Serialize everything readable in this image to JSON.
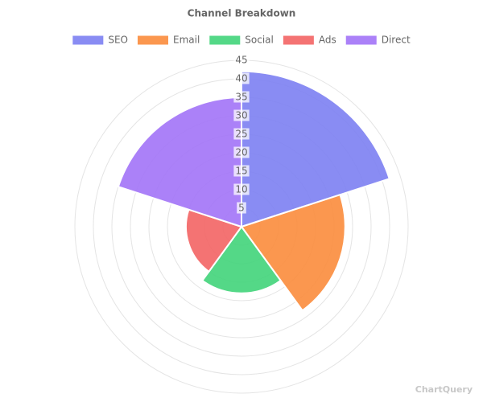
{
  "chart_data": {
    "type": "polarArea",
    "title": "Channel Breakdown",
    "categories": [
      "SEO",
      "Email",
      "Social",
      "Ads",
      "Direct"
    ],
    "values": [
      42,
      28,
      18,
      15,
      35
    ],
    "colors": [
      "#7c7ff2",
      "#fb8c3c",
      "#41d47a",
      "#f36464",
      "#a273f7"
    ],
    "ylim": [
      0,
      45
    ],
    "yticks": [
      5,
      10,
      15,
      20,
      25,
      30,
      35,
      40,
      45
    ],
    "grid": true,
    "legend": "top"
  },
  "watermark": "ChartQuery"
}
